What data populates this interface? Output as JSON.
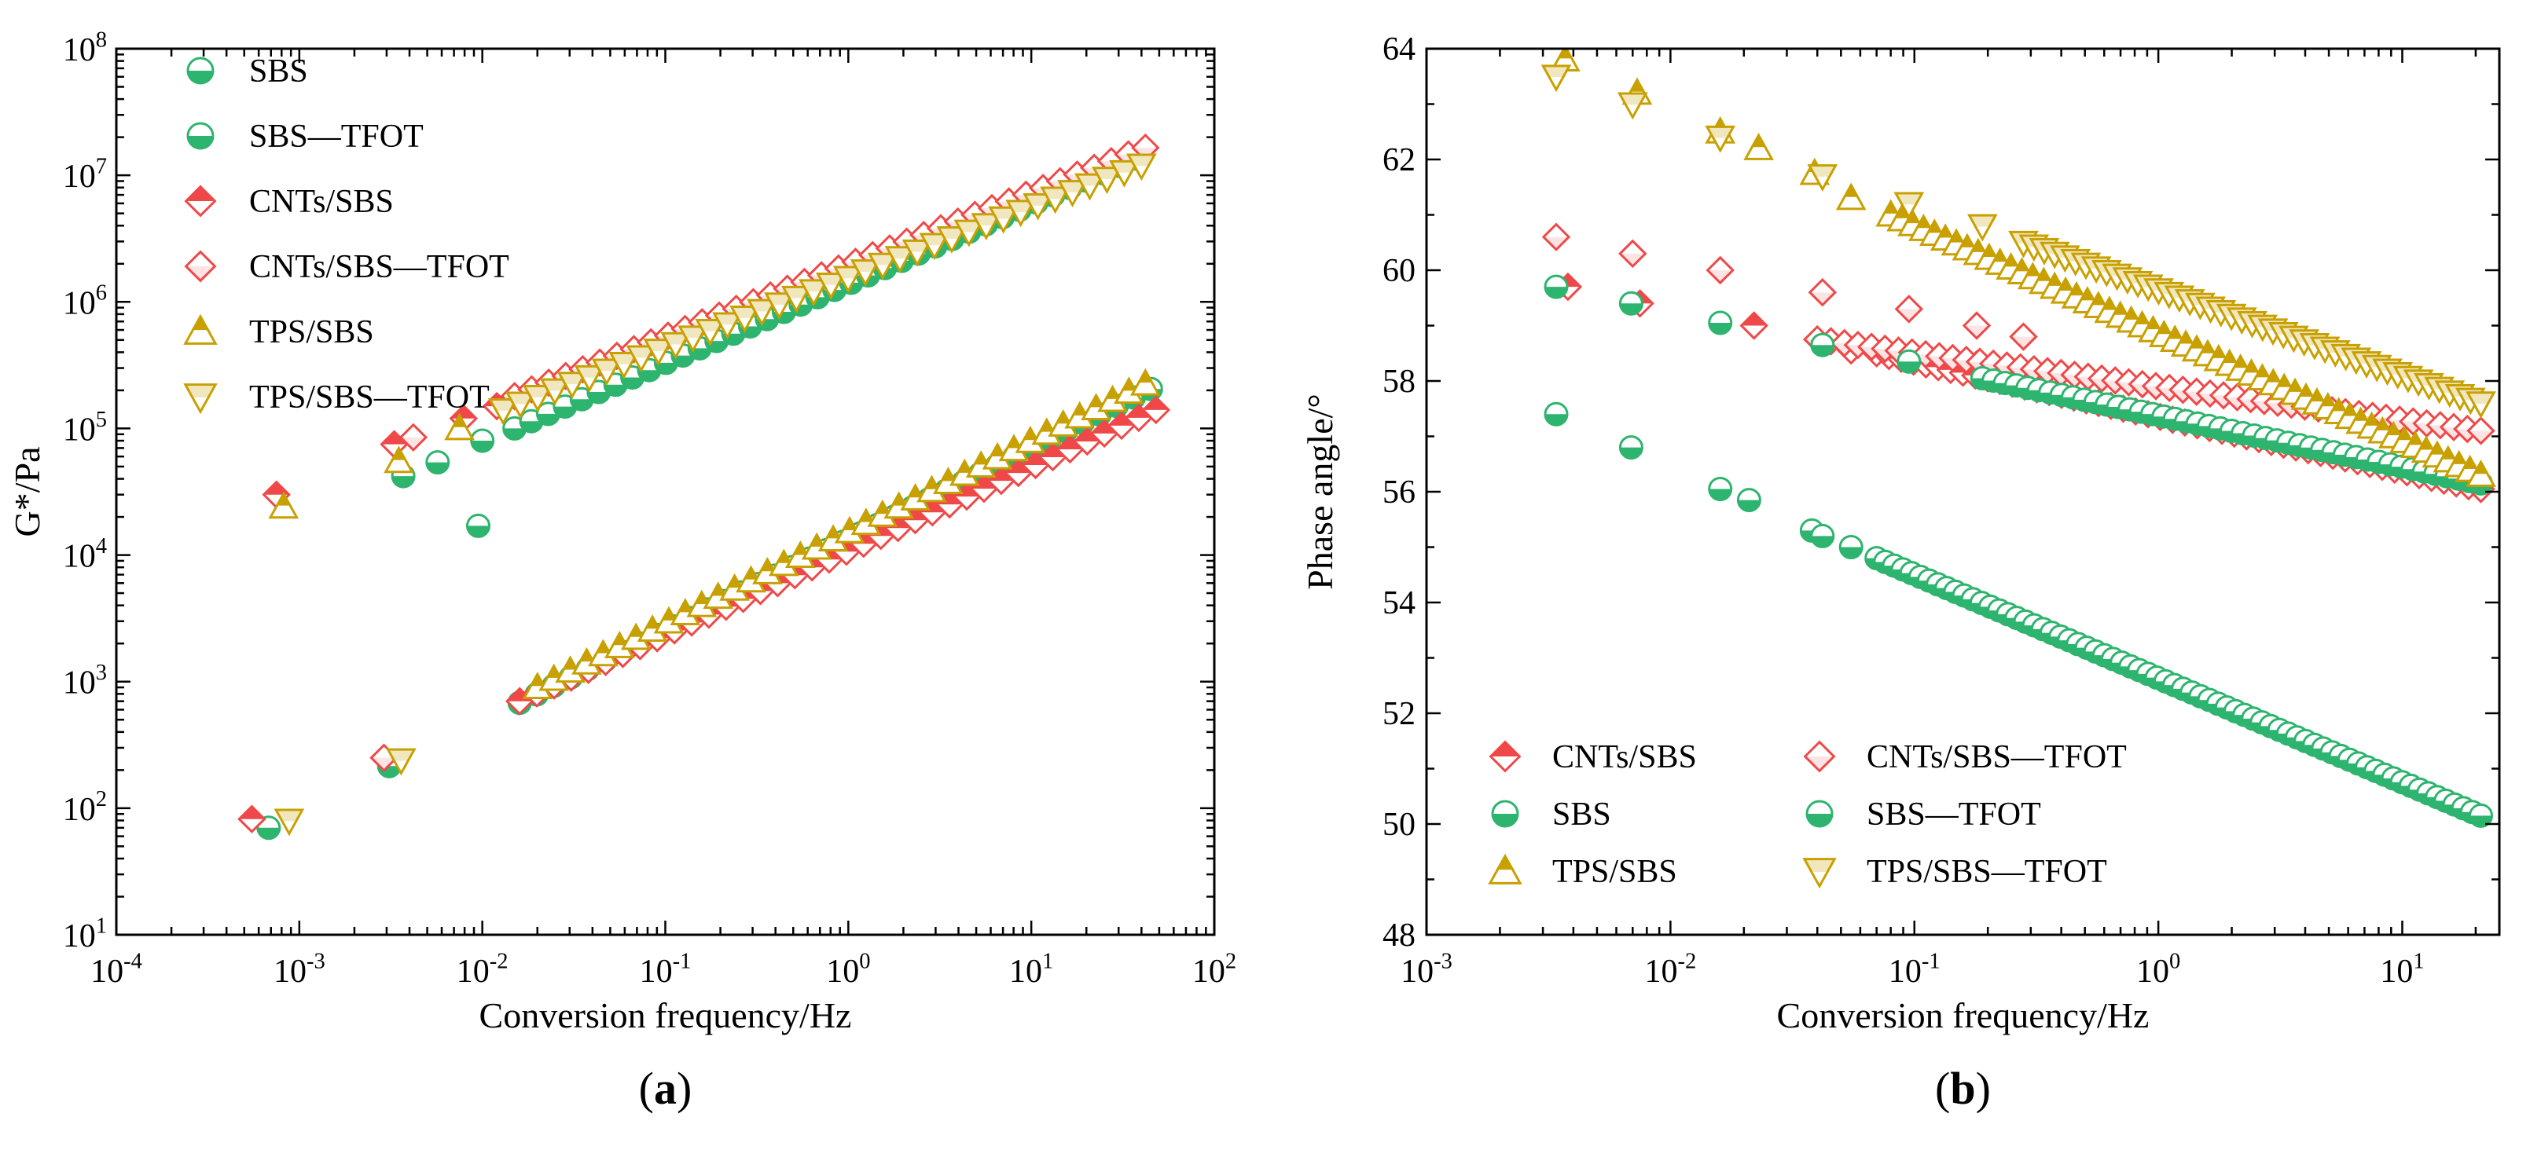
{
  "chart_data": [
    {
      "type": "scatter",
      "panel_label": "(a)",
      "panel_letter": "a",
      "xlabel": "Conversion frequency/Hz",
      "ylabel": "G*/Pa",
      "xscale": "log",
      "yscale": "log",
      "xlim": [
        0.0001,
        100
      ],
      "ylim": [
        10,
        100000000
      ],
      "x_ticks": [
        {
          "base": "10",
          "exp": "-4"
        },
        {
          "base": "10",
          "exp": "-3"
        },
        {
          "base": "10",
          "exp": "-2"
        },
        {
          "base": "10",
          "exp": "-1"
        },
        {
          "base": "10",
          "exp": "0"
        },
        {
          "base": "10",
          "exp": "1"
        },
        {
          "base": "10",
          "exp": "2"
        }
      ],
      "y_ticks": [
        {
          "base": "10",
          "exp": "1"
        },
        {
          "base": "10",
          "exp": "2"
        },
        {
          "base": "10",
          "exp": "3"
        },
        {
          "base": "10",
          "exp": "4"
        },
        {
          "base": "10",
          "exp": "5"
        },
        {
          "base": "10",
          "exp": "6"
        },
        {
          "base": "10",
          "exp": "7"
        },
        {
          "base": "10",
          "exp": "8"
        }
      ],
      "legend_position": "top-left",
      "series": [
        {
          "name": "SBS",
          "color": "#2db46e",
          "marker": "half-circle",
          "fragments": [
            {
              "x": [
                0.00068,
                0.0031,
                0.0095
              ],
              "y": [
                70,
                215,
                17000
              ]
            },
            {
              "x0": 0.016,
              "x1": 45,
              "y0": 680,
              "y1": 205000,
              "n": 38
            }
          ]
        },
        {
          "name": "SBS—TFOT",
          "color": "#2db46e",
          "marker": "half-circle",
          "fragments": [
            {
              "x": [
                0.0037,
                0.0057,
                0.01
              ],
              "y": [
                42000,
                54000,
                80000
              ]
            },
            {
              "x0": 0.015,
              "x1": 38,
              "y0": 100000,
              "y1": 13500000,
              "n": 38
            }
          ]
        },
        {
          "name": "CNTs/SBS",
          "color": "#f04848",
          "marker": "filled-diamond",
          "fragments": [
            {
              "x": [
                0.00055,
                0.0033,
                0.00075,
                0.0079,
                0.012
              ],
              "y": [
                82,
                75000,
                30000,
                120000,
                150000
              ]
            },
            {
              "x0": 0.016,
              "x1": 48,
              "y0": 700,
              "y1": 140000,
              "n": 38
            }
          ]
        },
        {
          "name": "CNTs/SBS—TFOT",
          "color": "#f04848",
          "marker": "open-diamond",
          "fragments": [
            {
              "x": [
                0.0029,
                0.0042
              ],
              "y": [
                250,
                85000
              ]
            },
            {
              "x0": 0.015,
              "x1": 42,
              "y0": 180000,
              "y1": 16500000,
              "n": 38
            }
          ]
        },
        {
          "name": "TPS/SBS",
          "color": "#c8a000",
          "marker": "triangle-up",
          "fragments": [
            {
              "x": [
                0.00082,
                0.0035,
                0.0075
              ],
              "y": [
                24000,
                55000,
                100000
              ]
            },
            {
              "x0": 0.02,
              "x1": 42,
              "y0": 900,
              "y1": 225000,
              "n": 38
            }
          ]
        },
        {
          "name": "TPS/SBS—TFOT",
          "color": "#c8a000",
          "marker": "triangle-down",
          "fragments": [
            {
              "x": [
                0.00088,
                0.0036
              ],
              "y": [
                80,
                240
              ]
            },
            {
              "x0": 0.013,
              "x1": 40,
              "y0": 140000,
              "y1": 12000000,
              "n": 38
            }
          ]
        }
      ]
    },
    {
      "type": "scatter",
      "panel_label": "(b)",
      "panel_letter": "b",
      "xlabel": "Conversion frequency/Hz",
      "ylabel": "Phase angle/°",
      "xscale": "log",
      "yscale": "linear",
      "xlim": [
        0.001,
        25
      ],
      "ylim": [
        48,
        64
      ],
      "x_ticks": [
        {
          "base": "10",
          "exp": "-3"
        },
        {
          "base": "10",
          "exp": "-2"
        },
        {
          "base": "10",
          "exp": "-1"
        },
        {
          "base": "10",
          "exp": "0"
        },
        {
          "base": "10",
          "exp": "1"
        }
      ],
      "y_ticks": [
        "48",
        "50",
        "52",
        "54",
        "56",
        "58",
        "60",
        "62",
        "64"
      ],
      "legend_position": "bottom-left",
      "series": [
        {
          "name": "CNTs/SBS",
          "color": "#f04848",
          "marker": "filled-diamond",
          "fragments": [
            {
              "x": [
                0.0038,
                0.0075,
                0.022,
                0.055,
                0.18
              ],
              "y": [
                59.7,
                59.4,
                59.0,
                58.55,
                58.3
              ]
            },
            {
              "x0": 0.07,
              "x1": 21,
              "y0": 58.5,
              "y1": 56.05,
              "n": 50
            }
          ]
        },
        {
          "name": "CNTs/SBS—TFOT",
          "color": "#f04848",
          "marker": "open-diamond",
          "fragments": [
            {
              "x": [
                0.0034,
                0.007,
                0.016,
                0.042,
                0.095,
                0.18,
                0.28
              ],
              "y": [
                60.6,
                60.3,
                60.0,
                59.6,
                59.3,
                59.0,
                58.8
              ]
            },
            {
              "x0": 0.04,
              "x1": 21,
              "y0": 58.75,
              "y1": 57.1,
              "n": 50
            }
          ]
        },
        {
          "name": "SBS",
          "color": "#2db46e",
          "marker": "half-circle",
          "fragments": [
            {
              "x": [
                0.0034,
                0.0069,
                0.016,
                0.021,
                0.038,
                0.042,
                0.055
              ],
              "y": [
                57.4,
                56.8,
                56.05,
                55.85,
                55.3,
                55.2,
                55.0
              ]
            },
            {
              "x0": 0.07,
              "x1": 21,
              "y0": 54.8,
              "y1": 50.15,
              "n": 70
            }
          ]
        },
        {
          "name": "SBS—TFOT",
          "color": "#2db46e",
          "marker": "half-circle",
          "fragments": [
            {
              "x": [
                0.0034,
                0.0069,
                0.016,
                0.042,
                0.095
              ],
              "y": [
                59.7,
                59.4,
                59.05,
                58.65,
                58.35
              ]
            },
            {
              "x0": 0.19,
              "x1": 21,
              "y0": 58.05,
              "y1": 56.15,
              "n": 45
            }
          ]
        },
        {
          "name": "TPS/SBS",
          "color": "#c8a000",
          "marker": "triangle-up",
          "fragments": [
            {
              "x": [
                0.0037,
                0.0073,
                0.016,
                0.023,
                0.039,
                0.055
              ],
              "y": [
                63.8,
                63.2,
                62.5,
                62.2,
                61.75,
                61.3
              ]
            },
            {
              "x0": 0.08,
              "x1": 21,
              "y0": 61.0,
              "y1": 56.3,
              "n": 55
            }
          ]
        },
        {
          "name": "TPS/SBS—TFOT",
          "color": "#c8a000",
          "marker": "triangle-down",
          "fragments": [
            {
              "x": [
                0.0034,
                0.007,
                0.016,
                0.042,
                0.095,
                0.19
              ],
              "y": [
                63.5,
                63.0,
                62.4,
                61.7,
                61.2,
                60.8
              ]
            },
            {
              "x0": 0.28,
              "x1": 21,
              "y0": 60.5,
              "y1": 57.6,
              "n": 45
            }
          ]
        }
      ]
    }
  ]
}
